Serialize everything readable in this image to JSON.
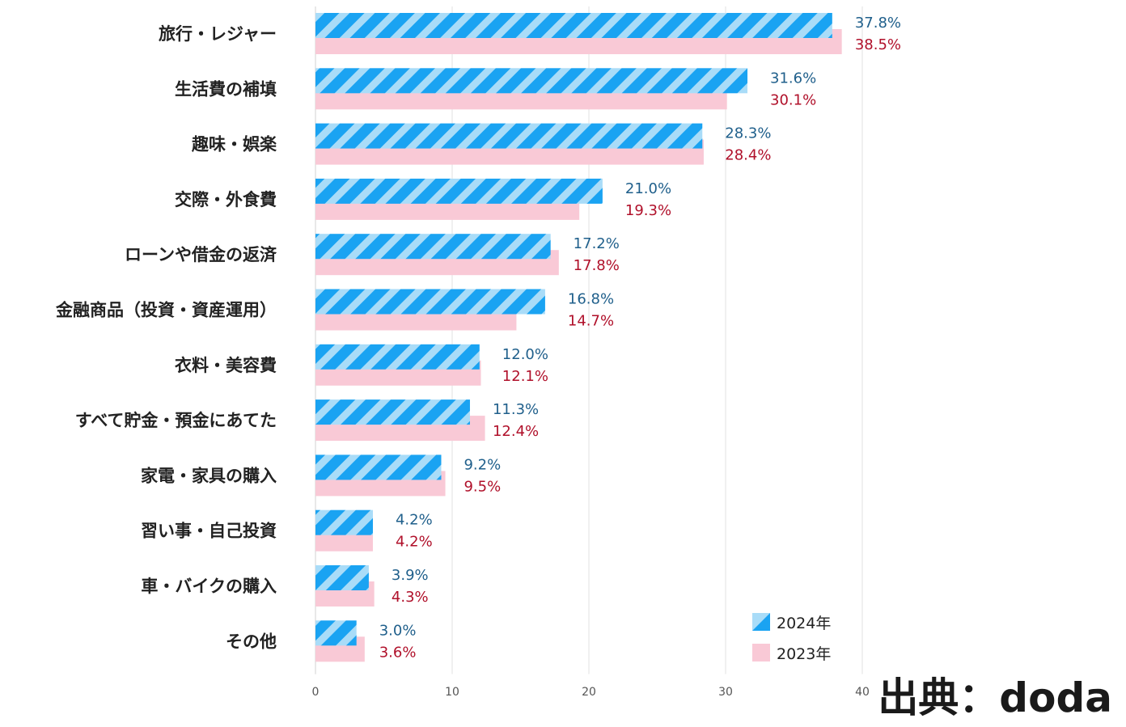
{
  "chart_data": {
    "type": "bar",
    "orientation": "horizontal",
    "categories": [
      "旅行・レジャー",
      "生活費の補填",
      "趣味・娯楽",
      "交際・外食費",
      "ローンや借金の返済",
      "金融商品（投資・資産運用）",
      "衣料・美容費",
      "すべて貯金・預金にあてた",
      "家電・家具の購入",
      "習い事・自己投資",
      "車・バイクの購入",
      "その他"
    ],
    "series": [
      {
        "name": "2024年",
        "values": [
          37.8,
          31.6,
          28.3,
          21.0,
          17.2,
          16.8,
          12.0,
          11.3,
          9.2,
          4.2,
          3.9,
          3.0
        ],
        "labels": [
          "37.8%",
          "31.6%",
          "28.3%",
          "21.0%",
          "17.2%",
          "16.8%",
          "12.0%",
          "11.3%",
          "9.2%",
          "4.2%",
          "3.9%",
          "3.0%"
        ],
        "color": "#1aa3f2",
        "stripe_color": "#a9dcf8",
        "label_color": "#1f5f8b"
      },
      {
        "name": "2023年",
        "values": [
          38.5,
          30.1,
          28.4,
          19.3,
          17.8,
          14.7,
          12.1,
          12.4,
          9.5,
          4.2,
          4.3,
          3.6
        ],
        "labels": [
          "38.5%",
          "30.1%",
          "28.4%",
          "19.3%",
          "17.8%",
          "14.7%",
          "12.1%",
          "12.4%",
          "9.5%",
          "4.2%",
          "4.3%",
          "3.6%"
        ],
        "color": "#f9c9d6",
        "label_color": "#b0102a"
      }
    ],
    "xticks": [
      0,
      10,
      20,
      30,
      40
    ],
    "xtick_labels": [
      "0",
      "10",
      "20",
      "30",
      "40"
    ],
    "xlim": [
      0,
      40
    ],
    "legend_position": "bottom-right",
    "grid": true
  },
  "source": "出典：doda"
}
